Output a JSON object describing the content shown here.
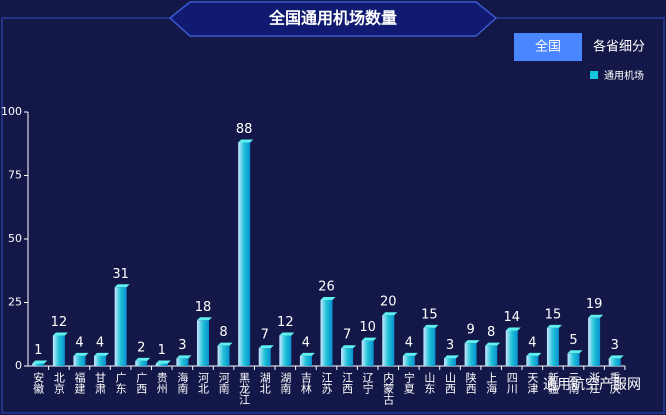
{
  "chart_data": {
    "type": "bar",
    "title": "全国通用机场数量",
    "categories": [
      "安徽",
      "北京",
      "福建",
      "甘肃",
      "广东",
      "广西",
      "贵州",
      "海南",
      "河北",
      "河南",
      "黑龙江",
      "湖北",
      "湖南",
      "吉林",
      "江苏",
      "江西",
      "辽宁",
      "内蒙古",
      "宁夏",
      "山东",
      "山西",
      "陕西",
      "上海",
      "四川",
      "天津",
      "新疆",
      "云南",
      "浙江",
      "重庆"
    ],
    "series": [
      {
        "name": "通用机场",
        "color": "#12c6dc",
        "values": [
          1,
          12,
          4,
          4,
          31,
          2,
          1,
          3,
          18,
          8,
          88,
          7,
          12,
          4,
          26,
          7,
          10,
          20,
          4,
          15,
          3,
          9,
          8,
          14,
          4,
          15,
          5,
          19,
          3
        ]
      }
    ],
    "ylim": [
      0,
      100
    ],
    "yticks": [
      0,
      25,
      50,
      75,
      100
    ],
    "legend": "top-right"
  },
  "buttons": [
    "全国",
    "各省细分"
  ],
  "watermark": "通用航空产服网"
}
